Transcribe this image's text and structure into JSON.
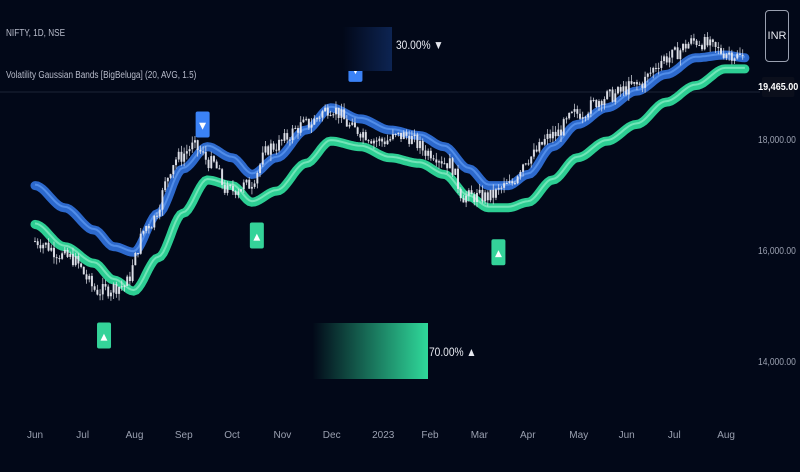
{
  "header": {
    "symbol": "NIFTY, 1D, NSE",
    "indicator": "Volatility Gaussian Bands [BigBeluga] (20, AVG, 1.5)"
  },
  "top_meter_label": "30.00% ▼",
  "bottom_meter_label": "70.00% ▲",
  "currency_box": "INR",
  "last_price_label": "19,465.00",
  "colors": {
    "background": "#020818",
    "upper_band": "#2f6fd6",
    "lower_band": "#2fd99a",
    "candle": "#e6e8ef",
    "sell_signal": "#3b82f6",
    "buy_signal": "#34d399"
  },
  "chart_data": {
    "type": "line",
    "x_ticks": [
      "Jun",
      "Jul",
      "Aug",
      "Sep",
      "Oct",
      "Nov",
      "Dec",
      "2023",
      "Feb",
      "Mar",
      "Apr",
      "May",
      "Jun",
      "Jul",
      "Aug"
    ],
    "y_ticks": [
      "14,000.00",
      "16,000.00",
      "18,000.00",
      "19,465.00"
    ],
    "y_tick_values": [
      14000,
      16000,
      18000
    ],
    "ylim": [
      13700,
      20000
    ],
    "x_count": 15,
    "series": [
      {
        "role": "price",
        "anchors": [
          [
            0,
            16200
          ],
          [
            0.7,
            15900
          ],
          [
            1.3,
            15300
          ],
          [
            1.8,
            15400
          ],
          [
            2.3,
            16500
          ],
          [
            2.9,
            17700
          ],
          [
            3.2,
            17900
          ],
          [
            3.6,
            17600
          ],
          [
            3.9,
            17100
          ],
          [
            4.3,
            17200
          ],
          [
            4.8,
            17900
          ],
          [
            5.5,
            18300
          ],
          [
            6.0,
            18600
          ],
          [
            6.5,
            18200
          ],
          [
            7.0,
            18000
          ],
          [
            7.5,
            18100
          ],
          [
            8.0,
            17800
          ],
          [
            8.4,
            17600
          ],
          [
            8.7,
            17000
          ],
          [
            9.2,
            17000
          ],
          [
            9.6,
            17200
          ],
          [
            10.0,
            17700
          ],
          [
            10.5,
            18100
          ],
          [
            11.0,
            18500
          ],
          [
            11.6,
            18800
          ],
          [
            12.2,
            19000
          ],
          [
            12.8,
            19500
          ],
          [
            13.4,
            19800
          ],
          [
            14.0,
            19600
          ],
          [
            14.4,
            19500
          ]
        ]
      },
      {
        "role": "upper_band",
        "anchors": [
          [
            0,
            17200
          ],
          [
            0.6,
            16800
          ],
          [
            1.2,
            16400
          ],
          [
            1.6,
            16100
          ],
          [
            2.0,
            16000
          ],
          [
            2.5,
            16700
          ],
          [
            3.0,
            17500
          ],
          [
            3.5,
            17900
          ],
          [
            4.0,
            17700
          ],
          [
            4.4,
            17400
          ],
          [
            4.9,
            17700
          ],
          [
            5.5,
            18200
          ],
          [
            6.0,
            18600
          ],
          [
            6.6,
            18400
          ],
          [
            7.2,
            18200
          ],
          [
            7.8,
            18100
          ],
          [
            8.3,
            17900
          ],
          [
            8.8,
            17500
          ],
          [
            9.2,
            17200
          ],
          [
            9.6,
            17200
          ],
          [
            10.0,
            17400
          ],
          [
            10.5,
            17900
          ],
          [
            11.0,
            18300
          ],
          [
            11.6,
            18600
          ],
          [
            12.2,
            18900
          ],
          [
            12.8,
            19200
          ],
          [
            13.4,
            19500
          ],
          [
            14.0,
            19550
          ],
          [
            14.4,
            19500
          ]
        ]
      },
      {
        "role": "lower_band",
        "anchors": [
          [
            0,
            16500
          ],
          [
            0.6,
            16100
          ],
          [
            1.2,
            15800
          ],
          [
            1.6,
            15500
          ],
          [
            2.0,
            15300
          ],
          [
            2.5,
            15900
          ],
          [
            3.0,
            16700
          ],
          [
            3.5,
            17300
          ],
          [
            4.0,
            17200
          ],
          [
            4.4,
            16900
          ],
          [
            4.9,
            17100
          ],
          [
            5.5,
            17600
          ],
          [
            6.0,
            18000
          ],
          [
            6.6,
            17900
          ],
          [
            7.2,
            17700
          ],
          [
            7.8,
            17600
          ],
          [
            8.3,
            17400
          ],
          [
            8.8,
            17000
          ],
          [
            9.2,
            16800
          ],
          [
            9.6,
            16800
          ],
          [
            10.0,
            16900
          ],
          [
            10.5,
            17300
          ],
          [
            11.0,
            17700
          ],
          [
            11.6,
            18000
          ],
          [
            12.2,
            18300
          ],
          [
            12.8,
            18700
          ],
          [
            13.4,
            19000
          ],
          [
            14.0,
            19300
          ],
          [
            14.4,
            19300
          ]
        ]
      }
    ],
    "signals": [
      {
        "type": "sell",
        "x": 3.4,
        "y": 18300
      },
      {
        "type": "sell",
        "x": 6.5,
        "y": 19300
      },
      {
        "type": "buy",
        "x": 1.4,
        "y": 14500
      },
      {
        "type": "buy",
        "x": 4.5,
        "y": 16300
      },
      {
        "type": "buy",
        "x": 9.4,
        "y": 16000
      }
    ],
    "meters": [
      {
        "name": "bear",
        "value_pct": 30.0,
        "color": "#0a1a3a"
      },
      {
        "name": "bull",
        "value_pct": 70.0,
        "color": "#2fd99a"
      }
    ]
  }
}
